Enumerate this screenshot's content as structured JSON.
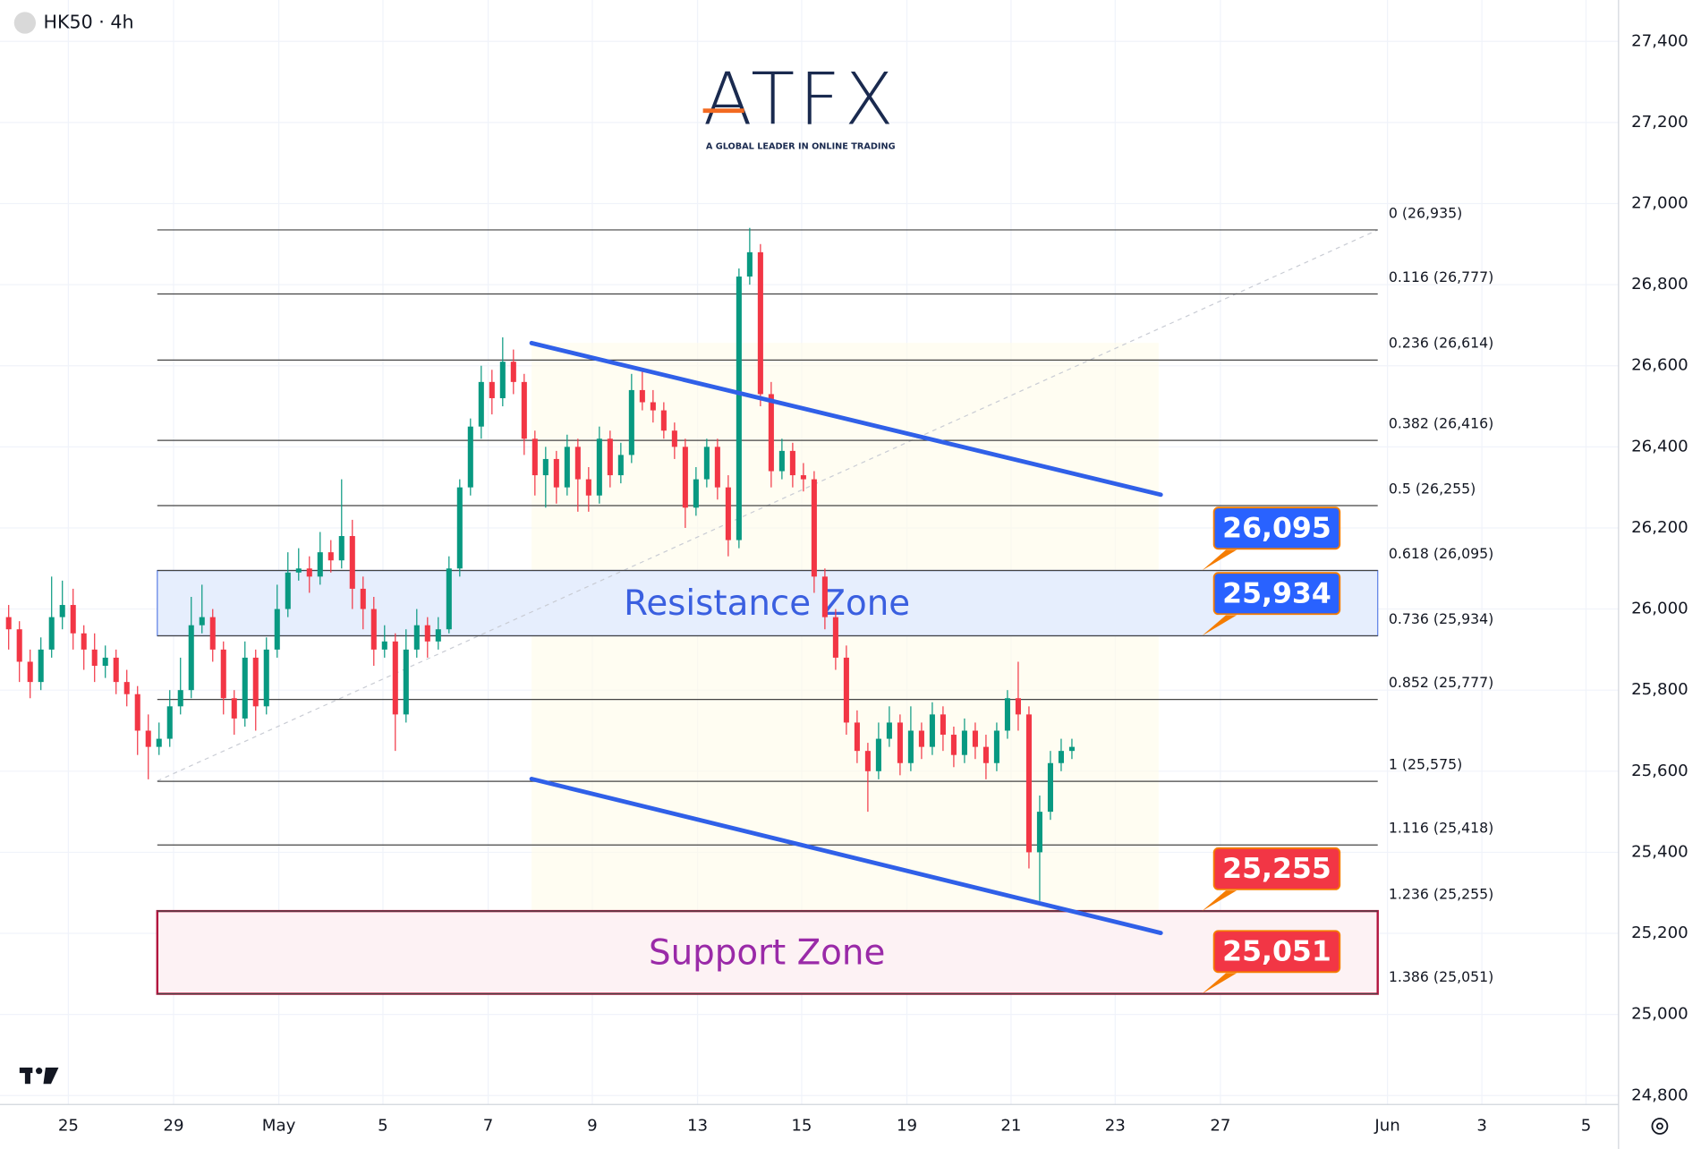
{
  "header": {
    "symbol": "HK50 · 4h"
  },
  "logo": {
    "name": "ATFX",
    "tagline": "A GLOBAL LEADER IN ONLINE TRADING"
  },
  "chart_data": {
    "type": "candlestick",
    "up_color": "#089981",
    "down_color": "#f23645",
    "ylim": [
      24778,
      27502
    ],
    "yticks": [
      {
        "value": 24800,
        "label": "24,800"
      },
      {
        "value": 25000,
        "label": "25,000"
      },
      {
        "value": 25200,
        "label": "25,200"
      },
      {
        "value": 25400,
        "label": "25,400"
      },
      {
        "value": 25600,
        "label": "25,600"
      },
      {
        "value": 25800,
        "label": "25,800"
      },
      {
        "value": 26000,
        "label": "26,000"
      },
      {
        "value": 26200,
        "label": "26,200"
      },
      {
        "value": 26400,
        "label": "26,400"
      },
      {
        "value": 26600,
        "label": "26,600"
      },
      {
        "value": 26800,
        "label": "26,800"
      },
      {
        "value": 27000,
        "label": "27,000"
      },
      {
        "value": 27200,
        "label": "27,200"
      },
      {
        "value": 27400,
        "label": "27,400"
      }
    ],
    "x_labels": [
      "25",
      "29",
      "May",
      "5",
      "7",
      "9",
      "13",
      "15",
      "19",
      "21",
      "23",
      "27",
      "Jun",
      "3",
      "5"
    ],
    "candles": [
      [
        25980,
        26010,
        25900,
        25950
      ],
      [
        25950,
        25970,
        25820,
        25870
      ],
      [
        25870,
        25900,
        25780,
        25820
      ],
      [
        25820,
        25930,
        25800,
        25900
      ],
      [
        25900,
        26080,
        25880,
        25980
      ],
      [
        25980,
        26070,
        25950,
        26010
      ],
      [
        26010,
        26050,
        25900,
        25940
      ],
      [
        25940,
        25960,
        25850,
        25900
      ],
      [
        25900,
        25940,
        25820,
        25860
      ],
      [
        25860,
        25910,
        25830,
        25880
      ],
      [
        25880,
        25900,
        25790,
        25820
      ],
      [
        25820,
        25850,
        25760,
        25790
      ],
      [
        25790,
        25810,
        25640,
        25700
      ],
      [
        25700,
        25740,
        25580,
        25660
      ],
      [
        25660,
        25720,
        25640,
        25680
      ],
      [
        25680,
        25800,
        25660,
        25760
      ],
      [
        25760,
        25880,
        25740,
        25800
      ],
      [
        25800,
        26030,
        25780,
        25960
      ],
      [
        25960,
        26060,
        25940,
        25980
      ],
      [
        25980,
        26000,
        25870,
        25900
      ],
      [
        25900,
        25920,
        25740,
        25780
      ],
      [
        25780,
        25800,
        25690,
        25730
      ],
      [
        25730,
        25920,
        25710,
        25880
      ],
      [
        25880,
        25900,
        25700,
        25760
      ],
      [
        25760,
        25930,
        25740,
        25900
      ],
      [
        25900,
        26060,
        25880,
        26000
      ],
      [
        26000,
        26140,
        25980,
        26090
      ],
      [
        26090,
        26150,
        26070,
        26100
      ],
      [
        26100,
        26130,
        26040,
        26080
      ],
      [
        26080,
        26190,
        26060,
        26140
      ],
      [
        26140,
        26170,
        26090,
        26120
      ],
      [
        26120,
        26320,
        26100,
        26180
      ],
      [
        26180,
        26220,
        26000,
        26050
      ],
      [
        26050,
        26080,
        25950,
        26000
      ],
      [
        26000,
        26030,
        25860,
        25900
      ],
      [
        25900,
        25960,
        25880,
        25920
      ],
      [
        25920,
        25940,
        25650,
        25740
      ],
      [
        25740,
        25950,
        25720,
        25900
      ],
      [
        25900,
        26000,
        25880,
        25960
      ],
      [
        25960,
        25980,
        25880,
        25920
      ],
      [
        25920,
        25980,
        25900,
        25950
      ],
      [
        25950,
        26130,
        25940,
        26100
      ],
      [
        26100,
        26320,
        26080,
        26300
      ],
      [
        26300,
        26470,
        26280,
        26450
      ],
      [
        26450,
        26600,
        26420,
        26560
      ],
      [
        26560,
        26590,
        26480,
        26520
      ],
      [
        26520,
        26670,
        26500,
        26610
      ],
      [
        26610,
        26640,
        26530,
        26560
      ],
      [
        26560,
        26580,
        26380,
        26420
      ],
      [
        26420,
        26440,
        26280,
        26330
      ],
      [
        26330,
        26400,
        26250,
        26370
      ],
      [
        26370,
        26390,
        26260,
        26300
      ],
      [
        26300,
        26430,
        26280,
        26400
      ],
      [
        26400,
        26420,
        26240,
        26320
      ],
      [
        26320,
        26350,
        26240,
        26280
      ],
      [
        26280,
        26450,
        26260,
        26420
      ],
      [
        26420,
        26440,
        26300,
        26330
      ],
      [
        26330,
        26410,
        26310,
        26380
      ],
      [
        26380,
        26580,
        26360,
        26540
      ],
      [
        26540,
        26590,
        26490,
        26510
      ],
      [
        26510,
        26540,
        26460,
        26490
      ],
      [
        26490,
        26510,
        26420,
        26440
      ],
      [
        26440,
        26460,
        26370,
        26400
      ],
      [
        26400,
        26420,
        26200,
        26250
      ],
      [
        26250,
        26350,
        26230,
        26320
      ],
      [
        26320,
        26420,
        26300,
        26400
      ],
      [
        26400,
        26420,
        26270,
        26300
      ],
      [
        26300,
        26330,
        26130,
        26170
      ],
      [
        26170,
        26840,
        26150,
        26820
      ],
      [
        26820,
        26940,
        26800,
        26880
      ],
      [
        26880,
        26900,
        26500,
        26530
      ],
      [
        26530,
        26560,
        26300,
        26340
      ],
      [
        26340,
        26420,
        26320,
        26390
      ],
      [
        26390,
        26410,
        26300,
        26330
      ],
      [
        26330,
        26360,
        26290,
        26320
      ],
      [
        26320,
        26340,
        26040,
        26080
      ],
      [
        26080,
        26100,
        25950,
        25980
      ],
      [
        25980,
        26000,
        25850,
        25880
      ],
      [
        25880,
        25910,
        25690,
        25720
      ],
      [
        25720,
        25750,
        25620,
        25650
      ],
      [
        25650,
        25670,
        25500,
        25600
      ],
      [
        25600,
        25720,
        25580,
        25680
      ],
      [
        25680,
        25760,
        25660,
        25720
      ],
      [
        25720,
        25740,
        25590,
        25620
      ],
      [
        25620,
        25760,
        25600,
        25700
      ],
      [
        25700,
        25720,
        25630,
        25660
      ],
      [
        25660,
        25770,
        25640,
        25740
      ],
      [
        25740,
        25760,
        25650,
        25690
      ],
      [
        25690,
        25710,
        25610,
        25640
      ],
      [
        25640,
        25730,
        25620,
        25700
      ],
      [
        25700,
        25720,
        25630,
        25660
      ],
      [
        25660,
        25690,
        25580,
        25620
      ],
      [
        25620,
        25720,
        25600,
        25700
      ],
      [
        25700,
        25800,
        25680,
        25780
      ],
      [
        25780,
        25870,
        25700,
        25740
      ],
      [
        25740,
        25760,
        25360,
        25400
      ],
      [
        25400,
        25540,
        25280,
        25500
      ],
      [
        25500,
        25650,
        25480,
        25620
      ],
      [
        25620,
        25680,
        25600,
        25650
      ],
      [
        25650,
        25680,
        25630,
        25660
      ]
    ],
    "fib_levels": [
      {
        "value": 26935,
        "label": "0 (26,935)"
      },
      {
        "value": 26777,
        "label": "0.116 (26,777)"
      },
      {
        "value": 26614,
        "label": "0.236 (26,614)"
      },
      {
        "value": 26416,
        "label": "0.382 (26,416)"
      },
      {
        "value": 26255,
        "label": "0.5 (26,255)"
      },
      {
        "value": 26095,
        "label": "0.618 (26,095)"
      },
      {
        "value": 25934,
        "label": "0.736 (25,934)"
      },
      {
        "value": 25777,
        "label": "0.852 (25,777)"
      },
      {
        "value": 25575,
        "label": "1 (25,575)"
      },
      {
        "value": 25418,
        "label": "1.116 (25,418)"
      },
      {
        "value": 25255,
        "label": "1.236 (25,255)"
      },
      {
        "value": 25051,
        "label": "1.386 (25,051)"
      }
    ],
    "fib_trend": [
      25576,
      26935
    ],
    "channel": {
      "upper": [
        26656,
        26282
      ],
      "lower": [
        25581,
        25201
      ],
      "color": "#3060e8"
    },
    "zones": [
      {
        "name": "Resistance Zone",
        "range": [
          25934,
          26095
        ],
        "color": "#3a5fe0",
        "fill": "#e6eefd",
        "border": "#5b7fe6"
      },
      {
        "name": "Support Zone",
        "range": [
          25051,
          25255
        ],
        "color": "#9a2aa8",
        "fill": "#fdf2f4",
        "border": "#b2163f"
      }
    ],
    "callouts": [
      {
        "value": 26095,
        "label": "26,095",
        "color": "#2962ff"
      },
      {
        "value": 25934,
        "label": "25,934",
        "color": "#2962ff"
      },
      {
        "value": 25255,
        "label": "25,255",
        "color": "#f23645"
      },
      {
        "value": 25051,
        "label": "25,051",
        "color": "#f23645"
      }
    ]
  }
}
